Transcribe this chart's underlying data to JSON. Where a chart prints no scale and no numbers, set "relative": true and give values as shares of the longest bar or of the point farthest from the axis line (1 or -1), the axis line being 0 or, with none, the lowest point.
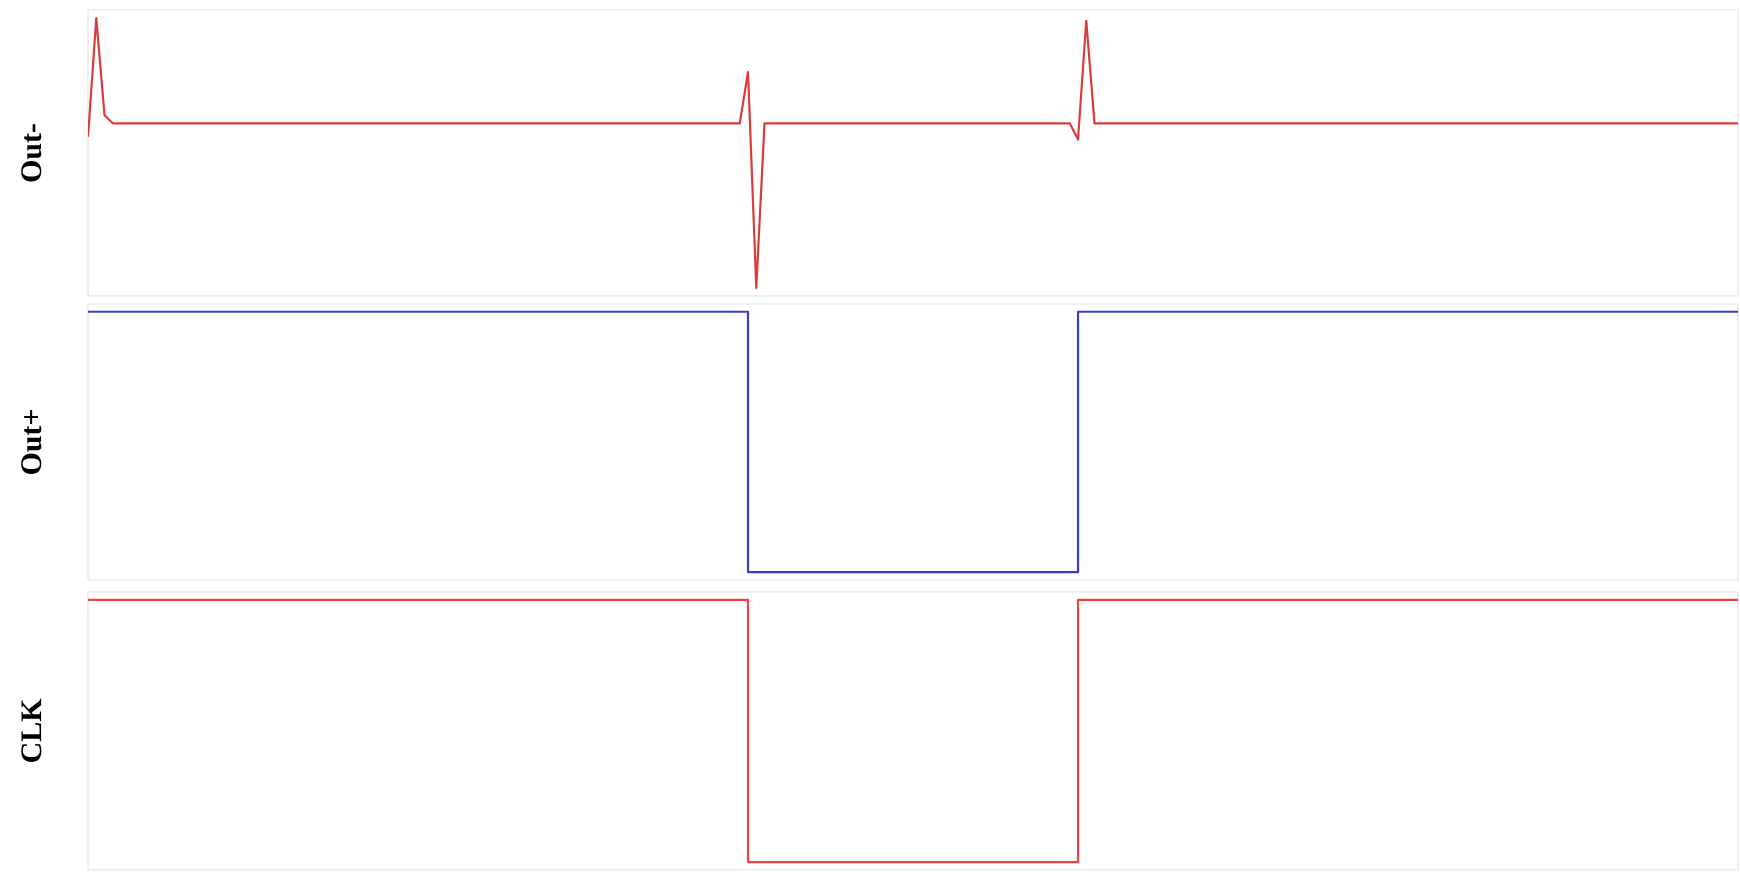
{
  "chart_data": [
    {
      "type": "line",
      "ylabel": "Out-",
      "relative": true,
      "categories": [
        null,
        null,
        null,
        null,
        null,
        null,
        null,
        null,
        null,
        null,
        null,
        null,
        null,
        null,
        null,
        null,
        null,
        null,
        null,
        null,
        null,
        null,
        null,
        null,
        null,
        null,
        null,
        null,
        null,
        null,
        null,
        null,
        null,
        null,
        null,
        null,
        null,
        null,
        null,
        null,
        null,
        null,
        null,
        null,
        null,
        null,
        null,
        null,
        null,
        null,
        null,
        null,
        null,
        null,
        null,
        null,
        null,
        null,
        null,
        null,
        null,
        null,
        null,
        null,
        null,
        null,
        null,
        null,
        null,
        null,
        null,
        null,
        null,
        null,
        null,
        null,
        null,
        null,
        null,
        null,
        null,
        null,
        null,
        null,
        null,
        null,
        null,
        null,
        null,
        null,
        null,
        null,
        null,
        null,
        null,
        null,
        null,
        null,
        null,
        null,
        null,
        null,
        null,
        null,
        null,
        null,
        null,
        null,
        null,
        null,
        null,
        null,
        null,
        null,
        null,
        null,
        null,
        null,
        null,
        null,
        null,
        null,
        null,
        null,
        null,
        null,
        null,
        null,
        null,
        null,
        null,
        null,
        null,
        null,
        null,
        null,
        null,
        null,
        null,
        null,
        null,
        null,
        null,
        null,
        null,
        null,
        null,
        null,
        null,
        null,
        null,
        null,
        null,
        null,
        null,
        null,
        null,
        null,
        null,
        null,
        null,
        null,
        null,
        null,
        null,
        null,
        null,
        null,
        null,
        null,
        null,
        null,
        null,
        null,
        null,
        null,
        null,
        null,
        null,
        null,
        null,
        null,
        null,
        null,
        null,
        null,
        null,
        null,
        null,
        null,
        null,
        null,
        null,
        null,
        null,
        null,
        null,
        null,
        null,
        null,
        null
      ],
      "series": [
        {
          "color": "#d83c3c",
          "values": [
            0.56,
            1,
            0.64,
            0.61,
            0.61,
            0.61,
            0.61,
            0.61,
            0.61,
            0.61,
            0.61,
            0.61,
            0.61,
            0.61,
            0.61,
            0.61,
            0.61,
            0.61,
            0.61,
            0.61,
            0.61,
            0.61,
            0.61,
            0.61,
            0.61,
            0.61,
            0.61,
            0.61,
            0.61,
            0.61,
            0.61,
            0.61,
            0.61,
            0.61,
            0.61,
            0.61,
            0.61,
            0.61,
            0.61,
            0.61,
            0.61,
            0.61,
            0.61,
            0.61,
            0.61,
            0.61,
            0.61,
            0.61,
            0.61,
            0.61,
            0.61,
            0.61,
            0.61,
            0.61,
            0.61,
            0.61,
            0.61,
            0.61,
            0.61,
            0.61,
            0.61,
            0.61,
            0.61,
            0.61,
            0.61,
            0.61,
            0.61,
            0.61,
            0.61,
            0.61,
            0.61,
            0.61,
            0.61,
            0.61,
            0.61,
            0.61,
            0.61,
            0.61,
            0.61,
            0.61,
            0.8,
            0,
            0.61,
            0.61,
            0.61,
            0.61,
            0.61,
            0.61,
            0.61,
            0.61,
            0.61,
            0.61,
            0.61,
            0.61,
            0.61,
            0.61,
            0.61,
            0.61,
            0.61,
            0.61,
            0.61,
            0.61,
            0.61,
            0.61,
            0.61,
            0.61,
            0.61,
            0.61,
            0.61,
            0.61,
            0.61,
            0.61,
            0.61,
            0.61,
            0.61,
            0.61,
            0.61,
            0.61,
            0.61,
            0.61,
            0.55,
            0.99,
            0.61,
            0.61,
            0.61,
            0.61,
            0.61,
            0.61,
            0.61,
            0.61,
            0.61,
            0.61,
            0.61,
            0.61,
            0.61,
            0.61,
            0.61,
            0.61,
            0.61,
            0.61,
            0.61,
            0.61,
            0.61,
            0.61,
            0.61,
            0.61,
            0.61,
            0.61,
            0.61,
            0.61,
            0.61,
            0.61,
            0.61,
            0.61,
            0.61,
            0.61,
            0.61,
            0.61,
            0.61,
            0.61,
            0.61,
            0.61,
            0.61,
            0.61,
            0.61,
            0.61,
            0.61,
            0.61,
            0.61,
            0.61,
            0.61,
            0.61,
            0.61,
            0.61,
            0.61,
            0.61,
            0.61,
            0.61,
            0.61,
            0.61,
            0.61,
            0.61,
            0.61,
            0.61,
            0.61,
            0.61,
            0.61,
            0.61,
            0.61,
            0.61,
            0.61,
            0.61,
            0.61,
            0.61,
            0.61,
            0.61,
            0.61,
            0.61,
            0.61,
            0.61,
            0.61
          ]
        }
      ]
    },
    {
      "type": "step",
      "ylabel": "Out+",
      "relative": true,
      "categories": [
        null,
        null,
        null,
        null,
        null,
        null,
        null,
        null,
        null,
        null,
        null,
        null,
        null,
        null,
        null,
        null,
        null,
        null,
        null,
        null,
        null,
        null,
        null,
        null,
        null,
        null,
        null,
        null,
        null,
        null,
        null,
        null,
        null,
        null,
        null,
        null,
        null,
        null,
        null,
        null,
        null,
        null,
        null,
        null,
        null,
        null,
        null,
        null,
        null,
        null,
        null,
        null,
        null,
        null,
        null,
        null,
        null,
        null,
        null,
        null,
        null,
        null,
        null,
        null,
        null,
        null,
        null,
        null,
        null,
        null,
        null,
        null,
        null,
        null,
        null,
        null,
        null,
        null,
        null,
        null,
        null,
        null,
        null,
        null,
        null,
        null,
        null,
        null,
        null,
        null,
        null,
        null,
        null,
        null,
        null,
        null,
        null,
        null,
        null,
        null,
        null
      ],
      "series": [
        {
          "color": "#3c3cc8",
          "values": [
            1,
            1,
            1,
            1,
            1,
            1,
            1,
            1,
            1,
            1,
            1,
            1,
            1,
            1,
            1,
            1,
            1,
            1,
            1,
            1,
            1,
            1,
            1,
            1,
            1,
            1,
            1,
            1,
            1,
            1,
            1,
            1,
            1,
            1,
            1,
            1,
            1,
            1,
            1,
            1,
            0,
            0,
            0,
            0,
            0,
            0,
            0,
            0,
            0,
            0,
            0,
            0,
            0,
            0,
            0,
            0,
            0,
            0,
            0,
            0,
            1,
            1,
            1,
            1,
            1,
            1,
            1,
            1,
            1,
            1,
            1,
            1,
            1,
            1,
            1,
            1,
            1,
            1,
            1,
            1,
            1,
            1,
            1,
            1,
            1,
            1,
            1,
            1,
            1,
            1,
            1,
            1,
            1,
            1,
            1,
            1,
            1,
            1,
            1,
            1,
            1
          ]
        }
      ]
    },
    {
      "type": "step",
      "ylabel": "CLK",
      "relative": true,
      "categories": [
        null,
        null,
        null,
        null,
        null,
        null,
        null,
        null,
        null,
        null,
        null,
        null,
        null,
        null,
        null,
        null,
        null,
        null,
        null,
        null,
        null,
        null,
        null,
        null,
        null,
        null,
        null,
        null,
        null,
        null,
        null,
        null,
        null,
        null,
        null,
        null,
        null,
        null,
        null,
        null,
        null,
        null,
        null,
        null,
        null,
        null,
        null,
        null,
        null,
        null,
        null,
        null,
        null,
        null,
        null,
        null,
        null,
        null,
        null,
        null,
        null,
        null,
        null,
        null,
        null,
        null,
        null,
        null,
        null,
        null,
        null,
        null,
        null,
        null,
        null,
        null,
        null,
        null,
        null,
        null,
        null,
        null,
        null,
        null,
        null,
        null,
        null,
        null,
        null,
        null,
        null,
        null,
        null,
        null,
        null,
        null,
        null,
        null,
        null,
        null,
        null
      ],
      "series": [
        {
          "color": "#f04040",
          "values": [
            1,
            1,
            1,
            1,
            1,
            1,
            1,
            1,
            1,
            1,
            1,
            1,
            1,
            1,
            1,
            1,
            1,
            1,
            1,
            1,
            1,
            1,
            1,
            1,
            1,
            1,
            1,
            1,
            1,
            1,
            1,
            1,
            1,
            1,
            1,
            1,
            1,
            1,
            1,
            1,
            0,
            0,
            0,
            0,
            0,
            0,
            0,
            0,
            0,
            0,
            0,
            0,
            0,
            0,
            0,
            0,
            0,
            0,
            0,
            0,
            1,
            1,
            1,
            1,
            1,
            1,
            1,
            1,
            1,
            1,
            1,
            1,
            1,
            1,
            1,
            1,
            1,
            1,
            1,
            1,
            1,
            1,
            1,
            1,
            1,
            1,
            1,
            1,
            1,
            1,
            1,
            1,
            1,
            1,
            1,
            1,
            1,
            1,
            1,
            1,
            1
          ]
        }
      ]
    }
  ]
}
